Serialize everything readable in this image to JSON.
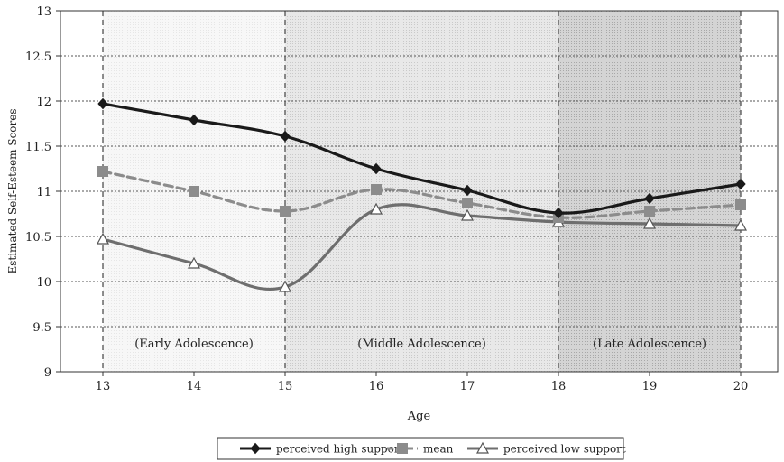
{
  "chart_data": {
    "type": "line",
    "xlabel": "Age",
    "ylabel": "Estimated Self-Esteem Scores",
    "xlim": [
      12.5,
      20.5
    ],
    "ylim": [
      9,
      13
    ],
    "x_ticks": [
      "13",
      "14",
      "15",
      "16",
      "17",
      "18",
      "19",
      "20"
    ],
    "y_ticks": [
      "9",
      "9.5",
      "10",
      "10.5",
      "11",
      "11.5",
      "12",
      "12.5",
      "13"
    ],
    "grid": "horizontal dotted",
    "legend_position": "bottom",
    "x": [
      13,
      14,
      15,
      16,
      17,
      18,
      19,
      20
    ],
    "series": [
      {
        "name": "perceived high support",
        "values": [
          11.97,
          11.79,
          11.61,
          11.25,
          11.01,
          10.76,
          10.92,
          11.08
        ],
        "color": "#1a1a1a",
        "marker": "diamond",
        "dash": "solid"
      },
      {
        "name": "mean",
        "values": [
          11.22,
          11.0,
          10.78,
          11.02,
          10.87,
          10.71,
          10.78,
          10.85
        ],
        "color": "#8c8c8c",
        "marker": "square",
        "dash": "dashed"
      },
      {
        "name": "perceived low support",
        "values": [
          10.47,
          10.2,
          9.94,
          10.8,
          10.73,
          10.66,
          10.64,
          10.62
        ],
        "color": "#6e6e6e",
        "marker": "triangle",
        "dash": "solid"
      }
    ],
    "regions": [
      {
        "label": "(Early Adolescence)",
        "from": 13,
        "to": 15,
        "shade": "#f7f7f7"
      },
      {
        "label": "(Middle Adolescence)",
        "from": 15,
        "to": 18,
        "shade": "#e4e4e4"
      },
      {
        "label": "(Late Adolescence)",
        "from": 18,
        "to": 20,
        "shade": "#cfcfcf"
      }
    ]
  }
}
